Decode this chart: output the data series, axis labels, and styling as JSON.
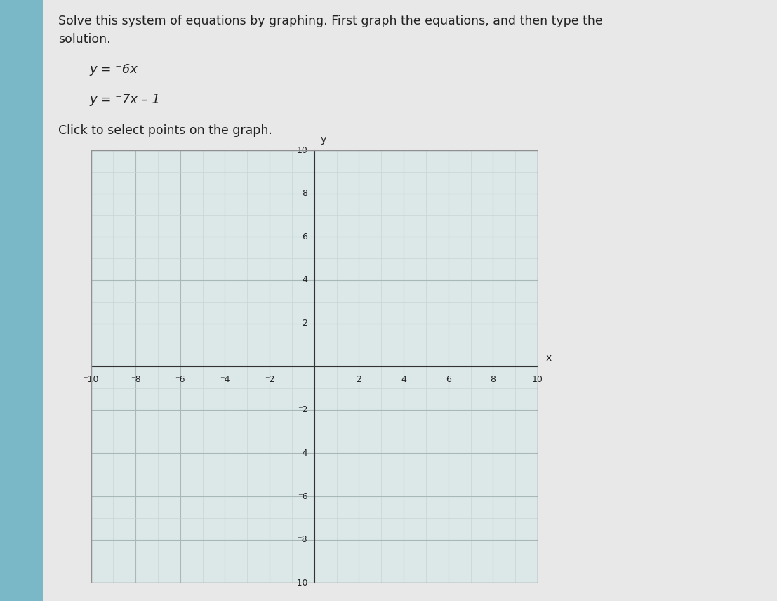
{
  "title_text": "Solve this system of equations by graphing. First graph the equations, and then type the",
  "title_text2": "solution.",
  "eq1_label": "y = ",
  "eq1_sup": "⁻",
  "eq1_rest": "6x",
  "eq2_label": "y = ⁻7x – 1",
  "click_text": "Click to select points on the graph.",
  "xlim": [
    -10,
    10
  ],
  "ylim": [
    -10,
    10
  ],
  "xlabel": "x",
  "ylabel": "y",
  "grid_minor_color": "#c8d4d4",
  "grid_major_color": "#a8b8b8",
  "axis_color": "#333333",
  "text_color": "#222222",
  "sidebar_color": "#7ab8c8",
  "content_bg": "#e8e8e8",
  "graph_bg": "#dce8e8",
  "fig_bg": "#e0e0e0",
  "border_color": "#909090"
}
